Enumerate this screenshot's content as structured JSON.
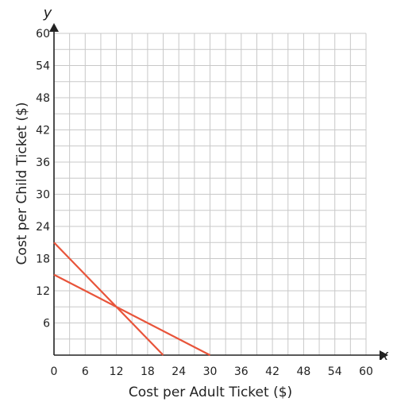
{
  "chart_data": {
    "type": "line",
    "xlabel": "Cost per Adult Ticket ($)",
    "ylabel": "Cost per Child Ticket ($)",
    "x_axis_symbol": "x",
    "y_axis_symbol": "y",
    "xlim": [
      0,
      60
    ],
    "ylim": [
      0,
      60
    ],
    "grid": true,
    "grid_step": 3,
    "x_ticks": [
      0,
      6,
      12,
      18,
      24,
      30,
      36,
      42,
      48,
      54,
      60
    ],
    "y_ticks": [
      6,
      12,
      18,
      24,
      30,
      36,
      42,
      48,
      54,
      60
    ],
    "series": [
      {
        "x": [
          0,
          21
        ],
        "y": [
          21,
          0
        ]
      },
      {
        "x": [
          0,
          30
        ],
        "y": [
          15,
          0
        ]
      }
    ],
    "colors": {
      "series": "#e8543a",
      "grid": "#c8c8c8",
      "axis": "#222222"
    }
  }
}
